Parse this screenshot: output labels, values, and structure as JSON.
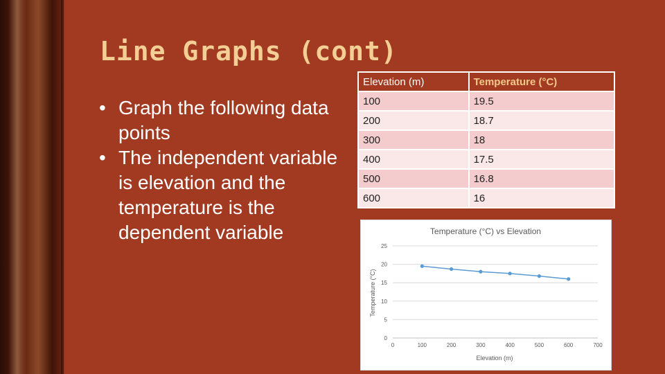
{
  "slide": {
    "title": "Line Graphs (cont)",
    "bullets": [
      "Graph the following data points",
      "The independent variable is elevation and the temperature is the dependent variable"
    ]
  },
  "table": {
    "headers": [
      "Elevation (m)",
      "Temperature (°C)"
    ],
    "rows": [
      [
        "100",
        "19.5"
      ],
      [
        "200",
        "18.7"
      ],
      [
        "300",
        "18"
      ],
      [
        "400",
        "17.5"
      ],
      [
        "500",
        "16.8"
      ],
      [
        "600",
        "16"
      ]
    ]
  },
  "colors": {
    "background": "#a23a22",
    "title": "#f4cf95",
    "table_header": "#a33b22",
    "row_odd": "#f4cccd",
    "row_even": "#fae8e8",
    "series": "#5b9bd5"
  },
  "chart_data": {
    "type": "line",
    "title": "Temperature (°C) vs Elevation",
    "xlabel": "Elevation (m)",
    "ylabel": "Temperature (°C)",
    "x": [
      100,
      200,
      300,
      400,
      500,
      600
    ],
    "series": [
      {
        "values": [
          19.5,
          18.7,
          18,
          17.5,
          16.8,
          16
        ]
      }
    ],
    "xlim": [
      0,
      700
    ],
    "ylim": [
      0,
      25
    ],
    "xticks": [
      0,
      100,
      200,
      300,
      400,
      500,
      600,
      700
    ],
    "yticks": [
      0,
      5,
      10,
      15,
      20,
      25
    ],
    "grid": true,
    "legend": "none"
  }
}
